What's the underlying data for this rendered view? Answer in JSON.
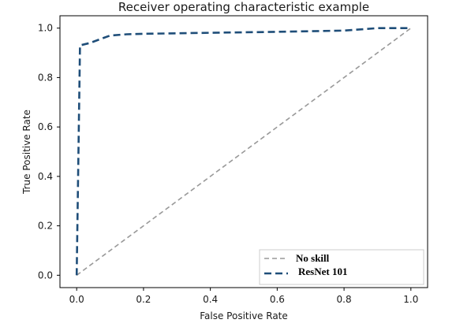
{
  "chart_data": {
    "type": "line",
    "title": "Receiver operating characteristic example",
    "xlabel": "False Positive Rate",
    "ylabel": "True Positive Rate",
    "xlim": [
      -0.05,
      1.05
    ],
    "ylim": [
      -0.05,
      1.05
    ],
    "xticks": [
      0.0,
      0.2,
      0.4,
      0.6,
      0.8,
      1.0
    ],
    "yticks": [
      0.0,
      0.2,
      0.4,
      0.6,
      0.8,
      1.0
    ],
    "xtick_labels": [
      "0.0",
      "0.2",
      "0.4",
      "0.6",
      "0.8",
      "1.0"
    ],
    "ytick_labels": [
      "0.0",
      "0.2",
      "0.4",
      "0.6",
      "0.8",
      "1.0"
    ],
    "grid": false,
    "legend_position": "lower-right",
    "series": [
      {
        "name": "No skill",
        "color": "#999999",
        "line_style": "dashed",
        "x": [
          0.0,
          1.0
        ],
        "y": [
          0.0,
          1.0
        ]
      },
      {
        "name": "ResNet 101",
        "color": "#1f4e79",
        "line_style": "dashed",
        "x": [
          0.0,
          0.01,
          0.04,
          0.07,
          0.1,
          0.15,
          0.2,
          0.4,
          0.6,
          0.8,
          0.9,
          1.0
        ],
        "y": [
          0.0,
          0.93,
          0.94,
          0.955,
          0.97,
          0.975,
          0.977,
          0.981,
          0.985,
          0.99,
          1.0,
          1.0
        ]
      }
    ]
  }
}
